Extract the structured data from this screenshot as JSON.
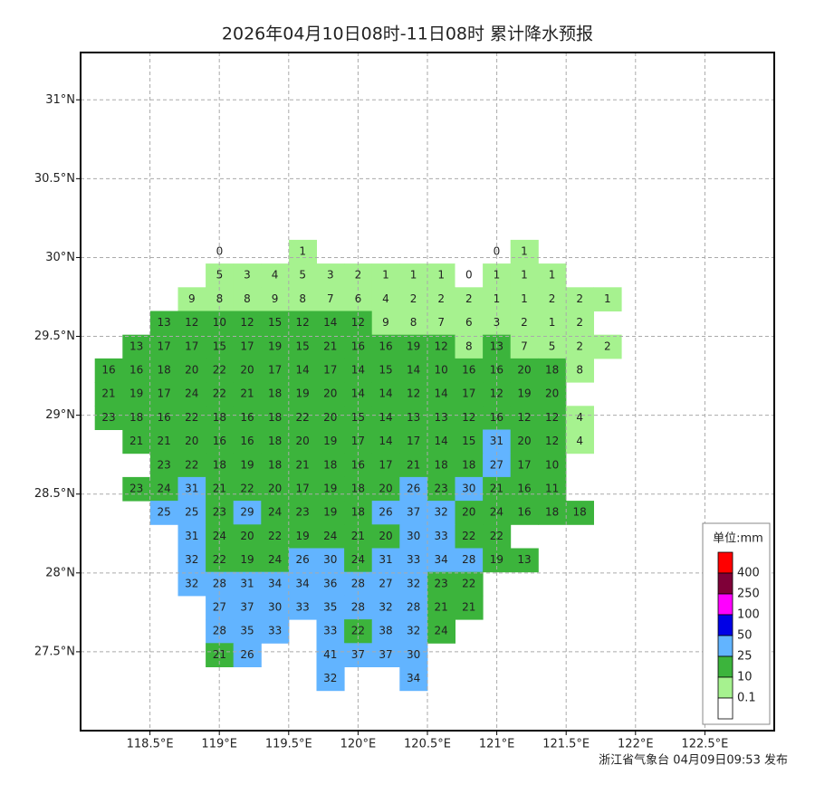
{
  "title": "2026年04月10日08时-11日08时 累计降水预报",
  "footer": "浙江省气象台 04月09日09:53 发布",
  "axes": {
    "xlim": [
      118.0,
      123.0
    ],
    "ylim": [
      27.0,
      31.3
    ],
    "xticks": [
      {
        "value": 118.5,
        "label": "118.5°E"
      },
      {
        "value": 119,
        "label": "119°E"
      },
      {
        "value": 119.5,
        "label": "119.5°E"
      },
      {
        "value": 120,
        "label": "120°E"
      },
      {
        "value": 120.5,
        "label": "120.5°E"
      },
      {
        "value": 121,
        "label": "121°E"
      },
      {
        "value": 121.5,
        "label": "121.5°E"
      },
      {
        "value": 122,
        "label": "122°E"
      },
      {
        "value": 122.5,
        "label": "122.5°E"
      }
    ],
    "yticks": [
      {
        "value": 27.5,
        "label": "27.5°N"
      },
      {
        "value": 28,
        "label": "28°N"
      },
      {
        "value": 28.5,
        "label": "28.5°N"
      },
      {
        "value": 29,
        "label": "29°N"
      },
      {
        "value": 29.5,
        "label": "29.5°N"
      },
      {
        "value": 30,
        "label": "30°N"
      },
      {
        "value": 30.5,
        "label": "30.5°N"
      },
      {
        "value": 31,
        "label": "31°N"
      }
    ],
    "grid": true
  },
  "legend": {
    "title": "单位:mm",
    "levels": [
      400,
      250,
      100,
      50,
      25,
      10,
      0.1
    ],
    "colors": [
      "#ff0000",
      "#7f0038",
      "#ff00ff",
      "#0000e6",
      "#62b4ff",
      "#3cb43c",
      "#a6f28f",
      "#ffffff"
    ]
  },
  "grid_values": {
    "rows": [
      [
        null,
        null,
        null,
        null,
        0,
        null,
        null,
        1,
        null,
        null,
        null,
        null,
        null,
        null,
        0,
        1,
        null,
        null,
        null
      ],
      [
        null,
        null,
        null,
        null,
        5,
        3,
        4,
        5,
        3,
        2,
        1,
        1,
        1,
        0,
        1,
        1,
        1,
        null,
        null
      ],
      [
        null,
        null,
        null,
        9,
        8,
        8,
        9,
        8,
        7,
        6,
        4,
        2,
        2,
        2,
        1,
        1,
        2,
        2,
        1
      ],
      [
        null,
        null,
        13,
        12,
        10,
        12,
        15,
        12,
        14,
        12,
        9,
        8,
        7,
        6,
        3,
        2,
        1,
        2,
        null
      ],
      [
        null,
        13,
        17,
        17,
        15,
        17,
        19,
        15,
        21,
        16,
        16,
        19,
        12,
        8,
        13,
        7,
        5,
        2,
        2
      ],
      [
        16,
        16,
        18,
        20,
        22,
        20,
        17,
        14,
        17,
        14,
        15,
        14,
        10,
        16,
        16,
        20,
        18,
        8,
        null
      ],
      [
        21,
        19,
        17,
        24,
        22,
        21,
        18,
        19,
        20,
        14,
        14,
        12,
        14,
        17,
        12,
        19,
        20,
        null,
        null
      ],
      [
        23,
        18,
        16,
        22,
        18,
        16,
        18,
        22,
        20,
        15,
        14,
        13,
        13,
        12,
        16,
        12,
        12,
        4,
        null
      ],
      [
        null,
        21,
        21,
        20,
        16,
        16,
        18,
        20,
        19,
        17,
        14,
        17,
        14,
        15,
        31,
        20,
        12,
        4,
        null
      ],
      [
        null,
        null,
        23,
        22,
        18,
        19,
        18,
        21,
        18,
        16,
        17,
        21,
        18,
        18,
        27,
        17,
        10,
        null,
        null
      ],
      [
        null,
        23,
        24,
        31,
        21,
        22,
        20,
        17,
        19,
        18,
        20,
        26,
        23,
        30,
        21,
        16,
        11,
        null,
        null
      ],
      [
        null,
        null,
        25,
        25,
        23,
        29,
        24,
        23,
        19,
        18,
        26,
        37,
        32,
        20,
        24,
        16,
        18,
        18,
        null
      ],
      [
        null,
        null,
        null,
        31,
        24,
        20,
        22,
        19,
        24,
        21,
        20,
        30,
        33,
        22,
        22,
        null,
        null,
        null,
        null
      ],
      [
        null,
        null,
        null,
        32,
        22,
        19,
        24,
        26,
        30,
        24,
        31,
        33,
        34,
        28,
        19,
        13,
        null,
        null,
        null
      ],
      [
        null,
        null,
        null,
        32,
        28,
        31,
        34,
        34,
        36,
        28,
        27,
        32,
        23,
        22,
        null,
        null,
        null,
        null,
        null
      ],
      [
        null,
        null,
        null,
        null,
        27,
        37,
        30,
        33,
        35,
        28,
        32,
        28,
        21,
        21,
        null,
        null,
        null,
        null,
        null
      ],
      [
        null,
        null,
        null,
        null,
        28,
        35,
        33,
        null,
        33,
        22,
        38,
        32,
        24,
        null,
        null,
        null,
        null,
        null,
        null
      ],
      [
        null,
        null,
        null,
        null,
        21,
        26,
        null,
        null,
        41,
        37,
        37,
        30,
        null,
        null,
        null,
        null,
        null,
        null,
        null
      ],
      [
        null,
        null,
        null,
        null,
        null,
        null,
        null,
        null,
        32,
        null,
        null,
        34,
        null,
        null,
        null,
        null,
        null,
        null,
        null
      ]
    ]
  }
}
